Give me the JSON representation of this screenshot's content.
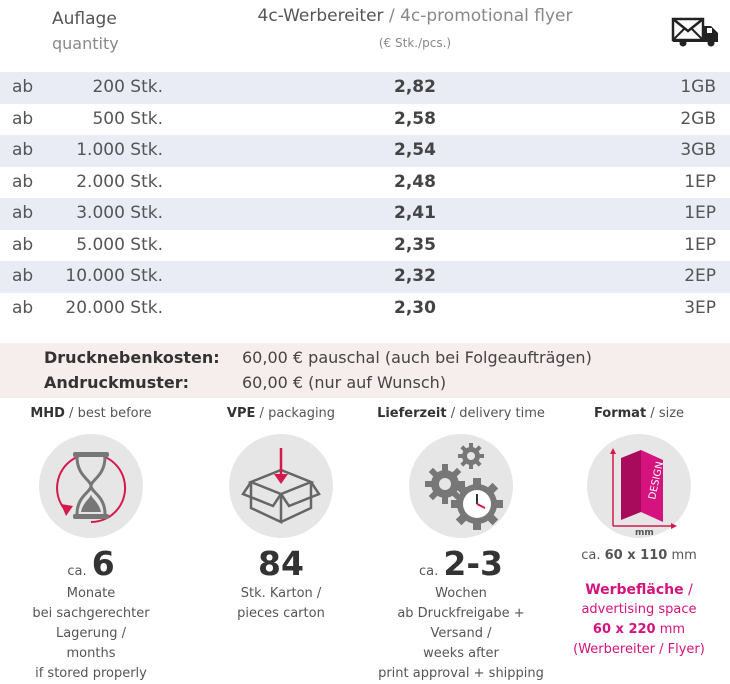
{
  "header": {
    "quantity_de": "Auflage",
    "quantity_en": "quantity",
    "product_de": "4c-Werbereiter",
    "product_sep": " / ",
    "product_en": "4c-promotional flyer",
    "unit": "(€ Stk./pcs.)",
    "shipping_icon": "envelope-truck-icon"
  },
  "price_table": {
    "rows": [
      {
        "prefix": "ab",
        "quantity": "200 Stk.",
        "price": "2,82",
        "shipping": "1GB"
      },
      {
        "prefix": "ab",
        "quantity": "500 Stk.",
        "price": "2,58",
        "shipping": "2GB"
      },
      {
        "prefix": "ab",
        "quantity": "1.000 Stk.",
        "price": "2,54",
        "shipping": "3GB"
      },
      {
        "prefix": "ab",
        "quantity": "2.000 Stk.",
        "price": "2,48",
        "shipping": "1EP"
      },
      {
        "prefix": "ab",
        "quantity": "3.000 Stk.",
        "price": "2,41",
        "shipping": "1EP"
      },
      {
        "prefix": "ab",
        "quantity": "5.000 Stk.",
        "price": "2,35",
        "shipping": "1EP"
      },
      {
        "prefix": "ab",
        "quantity": "10.000 Stk.",
        "price": "2,32",
        "shipping": "2EP"
      },
      {
        "prefix": "ab",
        "quantity": "20.000 Stk.",
        "price": "2,30",
        "shipping": "3EP"
      }
    ]
  },
  "costs": {
    "side_costs_label": "Drucknebenkosten:",
    "side_costs_value": "60,00 € pauschal (auch bei Folgeaufträgen)",
    "proof_label": "Andruckmuster:",
    "proof_value": "60,00 € (nur auf Wunsch)"
  },
  "features": {
    "mhd": {
      "title": "MHD",
      "sep": " / ",
      "subtitle": "best before",
      "icon": "hourglass-icon",
      "prefix": "ca.",
      "value": "6",
      "lines": [
        "Monate",
        "bei sachgerechter Lagerung /",
        "months",
        "if stored properly"
      ]
    },
    "vpe": {
      "title": "VPE",
      "sep": " / ",
      "subtitle": "packaging",
      "icon": "box-icon",
      "value": "84",
      "lines": [
        "Stk. Karton /",
        "pieces carton"
      ]
    },
    "delivery": {
      "title": "Lieferzeit",
      "sep": " / ",
      "subtitle": "delivery time",
      "icon": "gears-clock-icon",
      "prefix": "ca.",
      "value": "2-3",
      "lines": [
        "Wochen",
        "ab Druckfreigabe + Versand /",
        "weeks after",
        "print approval + shipping"
      ]
    },
    "format": {
      "title": "Format",
      "sep": " / ",
      "subtitle": "size",
      "icon": "flyer-design-icon",
      "icon_text": "DESIGN",
      "icon_unit": "mm",
      "size_prefix": "ca.",
      "size_value": "60 x 110",
      "size_unit": "mm",
      "area_title": "Werbefläche",
      "area_sep": " /",
      "area_subtitle": "advertising space",
      "area_value": "60 x 220",
      "area_unit": "mm",
      "area_note": "(Werbereiter / Flyer)",
      "accent": "#d4137e"
    }
  }
}
